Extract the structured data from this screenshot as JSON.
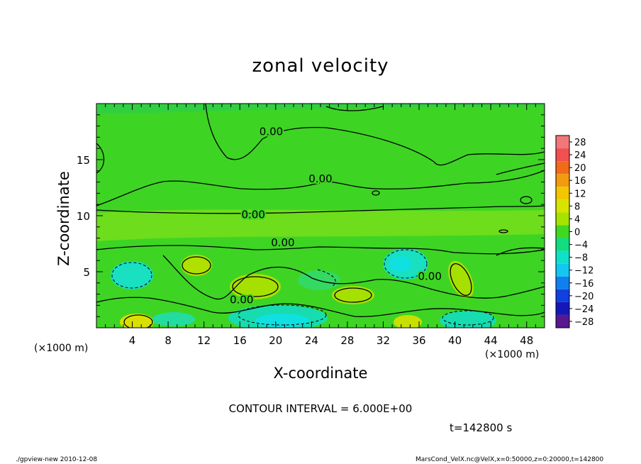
{
  "title": "zonal velocity",
  "xlabel": "X-coordinate",
  "ylabel": "Z-coordinate",
  "x_unit": "(×1000 m)",
  "contour_interval_text": "CONTOUR INTERVAL = 6.000E+00",
  "time_text": "t=142800 s",
  "footer_left": "./gpview-new   2010-12-08",
  "footer_right": "MarsCond_VelX.nc@VelX,x=0:50000,z=0:20000,t=142800",
  "chart_data": {
    "type": "heatmap",
    "title": "zonal velocity",
    "xlabel": "X-coordinate",
    "ylabel": "Z-coordinate",
    "x_unit": "(×1000 m)",
    "xlim": [
      0,
      50
    ],
    "ylim": [
      0,
      20
    ],
    "x_ticks": [
      4,
      8,
      12,
      16,
      20,
      24,
      28,
      32,
      36,
      40,
      44,
      48
    ],
    "y_ticks": [
      5,
      10,
      15
    ],
    "contour_label": "0.00",
    "contour_labels": [
      {
        "x": 19.5,
        "y": 17.5,
        "text": "0.00"
      },
      {
        "x": 25,
        "y": 13.3,
        "text": "0.00"
      },
      {
        "x": 17.5,
        "y": 10.1,
        "text": "0.00"
      },
      {
        "x": 20.8,
        "y": 7.6,
        "text": "0.00"
      },
      {
        "x": 16.2,
        "y": 2.5,
        "text": "0.00"
      },
      {
        "x": 37.2,
        "y": 4.6,
        "text": "0.00"
      }
    ],
    "colorbar": {
      "levels": [
        28,
        24,
        20,
        16,
        12,
        8,
        4,
        0,
        -4,
        -8,
        -12,
        -16,
        -20,
        -24,
        -28
      ],
      "colors": [
        "#f07878",
        "#f25050",
        "#f26a1a",
        "#f29a10",
        "#f2c600",
        "#d8e400",
        "#a6e400",
        "#40d820",
        "#12dc80",
        "#10e0c8",
        "#12c8f0",
        "#1080f0",
        "#1040e0",
        "#1418b8",
        "#5a1890"
      ]
    }
  }
}
